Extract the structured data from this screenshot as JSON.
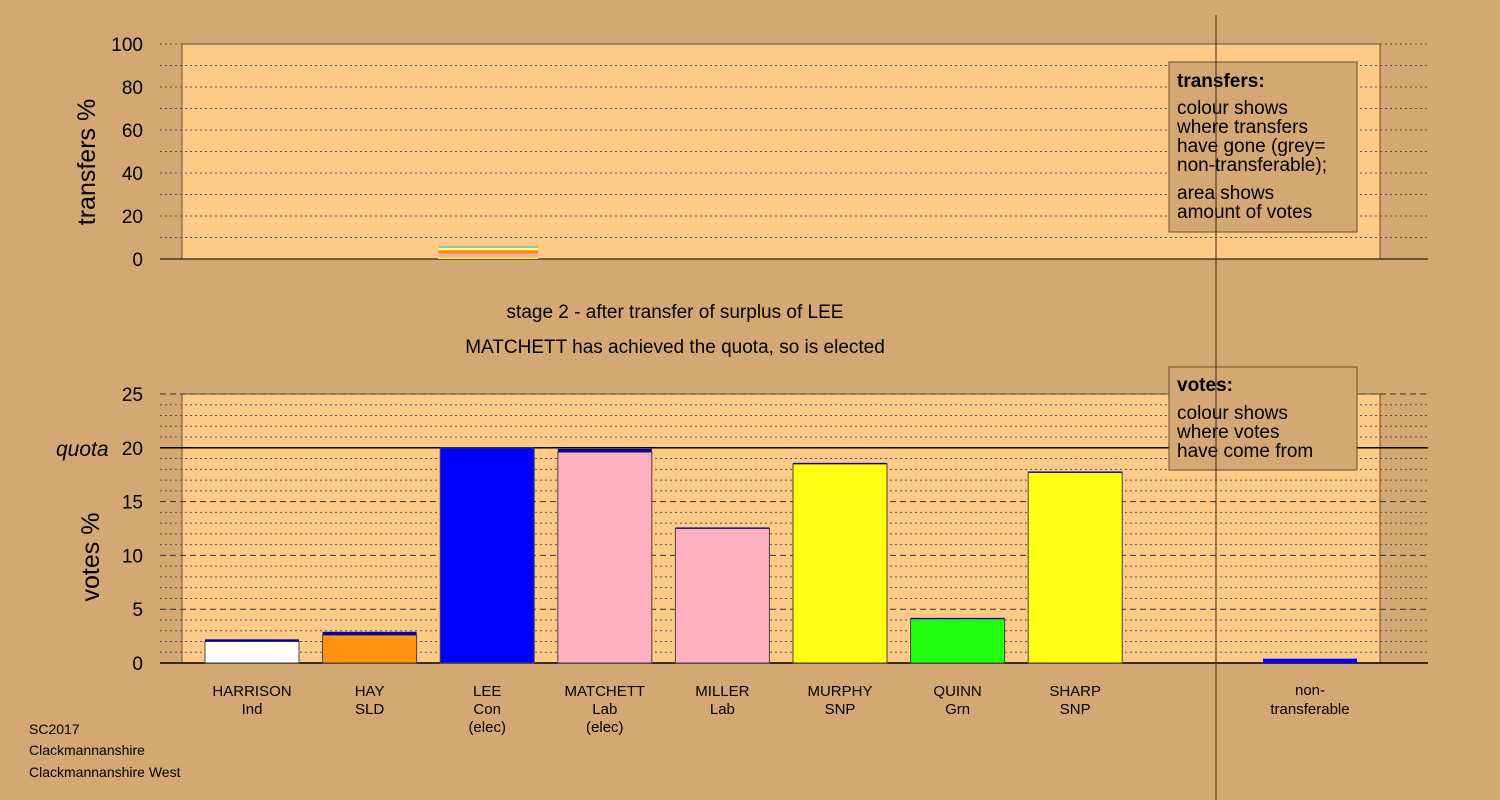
{
  "chart_data": [
    {
      "type": "bar",
      "ylabel": "transfers %",
      "ylim": [
        0,
        100
      ],
      "yticks": [
        0,
        20,
        40,
        60,
        80,
        100
      ],
      "transfer_bars": [
        {
          "candidate": "LEE",
          "segments": [
            {
              "value": 0.7,
              "color": "#ffff00"
            },
            {
              "value": 1.2,
              "color": "#ffa0b4"
            },
            {
              "value": 0.6,
              "color": "#c0c0c0"
            },
            {
              "value": 1.6,
              "color": "#ff8c00"
            },
            {
              "value": 1.0,
              "color": "#ffff99"
            },
            {
              "value": 1.0,
              "color": "#90c890"
            }
          ]
        }
      ]
    },
    {
      "type": "bar",
      "ylabel": "votes %",
      "ylim": [
        0,
        25
      ],
      "yticks": [
        0,
        5,
        10,
        15,
        20,
        25
      ],
      "quota": 20,
      "quota_label": "quota",
      "categories": [
        {
          "name": "HARRISON",
          "party": "Ind",
          "extra": "",
          "color": "#ffffff",
          "value": 2.2,
          "received": 0.2
        },
        {
          "name": "HAY",
          "party": "SLD",
          "extra": "",
          "color": "#ff9210",
          "value": 2.9,
          "received": 0.3
        },
        {
          "name": "LEE",
          "party": "Con",
          "extra": "(elec)",
          "color": "#0000ff",
          "value": 20.0,
          "received": 0
        },
        {
          "name": "MATCHETT",
          "party": "Lab",
          "extra": "(elec)",
          "color": "#ffb0c0",
          "value": 19.9,
          "received": 0.3
        },
        {
          "name": "MILLER",
          "party": "Lab",
          "extra": "",
          "color": "#ffb0c0",
          "value": 12.6,
          "received": 0.1
        },
        {
          "name": "MURPHY",
          "party": "SNP",
          "extra": "",
          "color": "#ffff14",
          "value": 18.6,
          "received": 0.1
        },
        {
          "name": "QUINN",
          "party": "Grn",
          "extra": "",
          "color": "#22ff10",
          "value": 4.2,
          "received": 0.1
        },
        {
          "name": "SHARP",
          "party": "SNP",
          "extra": "",
          "color": "#ffff14",
          "value": 17.8,
          "received": 0.1
        }
      ],
      "nontransferable": {
        "line1": "non-",
        "line2": "transferable",
        "color": "#0000ff",
        "value": 0.4
      }
    }
  ],
  "stage_title": "stage 2 - after transfer of surplus of LEE",
  "stage_subtitle": "MATCHETT has achieved the quota, so is elected",
  "legend_transfers": {
    "title": "transfers:",
    "lines": [
      "colour shows",
      "where transfers",
      "have gone (grey=",
      "non-transferable);",
      "area shows",
      "amount of votes"
    ]
  },
  "legend_votes": {
    "title": "votes:",
    "lines": [
      "colour shows",
      "where votes",
      "have come from"
    ]
  },
  "footer": [
    "SC2017",
    "Clackmannanshire",
    "Clackmannanshire West"
  ],
  "colors": {
    "background": "#d4a872",
    "plot_area": "#ffc987",
    "received_transfer": "#0000aa"
  }
}
